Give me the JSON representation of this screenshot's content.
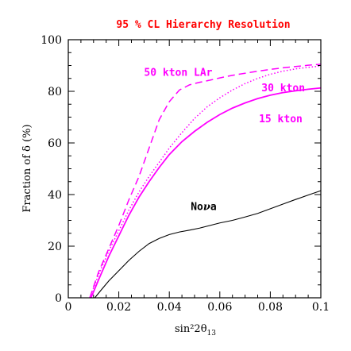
{
  "chart_data": {
    "type": "line",
    "title": "95 % CL Hierarchy Resolution",
    "xlabel": "sin²2θ",
    "xlabel_sub": "13",
    "ylabel": "Fraction of δ  (%)",
    "xlim": [
      0,
      0.1
    ],
    "ylim": [
      0,
      100
    ],
    "x_ticks": [
      0,
      0.02,
      0.04,
      0.06,
      0.08,
      0.1
    ],
    "x_tick_labels": [
      "0",
      "0.02",
      "0.04",
      "0.06",
      "0.08",
      "0.1"
    ],
    "y_ticks": [
      0,
      20,
      40,
      60,
      80,
      100
    ],
    "y_tick_labels": [
      "0",
      "20",
      "40",
      "60",
      "80",
      "100"
    ],
    "grid": false,
    "colors": {
      "accent": "#ff00ff",
      "nova": "#000000",
      "axis": "#000000"
    },
    "series": [
      {
        "name": "50 kton LAr",
        "color": "#ff00ff",
        "style": "dashed",
        "label_at": [
          0.03,
          86
        ],
        "x": [
          0.0085,
          0.012,
          0.016,
          0.02,
          0.024,
          0.028,
          0.032,
          0.036,
          0.04,
          0.044,
          0.048,
          0.052,
          0.056,
          0.06,
          0.065,
          0.07,
          0.075,
          0.08,
          0.085,
          0.09,
          0.095,
          0.1
        ],
        "values": [
          0,
          10,
          19,
          28,
          38,
          47,
          58,
          69,
          76,
          80.5,
          82.5,
          83.5,
          84.3,
          85.2,
          86.2,
          87,
          87.8,
          88.5,
          89.1,
          89.6,
          90.1,
          90.5
        ]
      },
      {
        "name": "30 kton",
        "color": "#ff00ff",
        "style": "dotted",
        "label_at": [
          0.0765,
          80
        ],
        "x": [
          0.0085,
          0.012,
          0.016,
          0.02,
          0.024,
          0.028,
          0.032,
          0.036,
          0.04,
          0.045,
          0.05,
          0.055,
          0.06,
          0.065,
          0.07,
          0.075,
          0.08,
          0.085,
          0.09,
          0.095,
          0.1
        ],
        "values": [
          0,
          9,
          18,
          26,
          34,
          41,
          47,
          52.5,
          58,
          64,
          69.5,
          74,
          77.5,
          80.5,
          83,
          85,
          86.6,
          87.8,
          88.7,
          89.3,
          89.8
        ]
      },
      {
        "name": "15 kton",
        "color": "#ff00ff",
        "style": "solid",
        "label_at": [
          0.0755,
          68
        ],
        "x": [
          0.009,
          0.012,
          0.016,
          0.02,
          0.024,
          0.028,
          0.032,
          0.036,
          0.04,
          0.045,
          0.05,
          0.055,
          0.06,
          0.065,
          0.07,
          0.075,
          0.08,
          0.085,
          0.09,
          0.095,
          0.1
        ],
        "values": [
          0,
          7,
          16,
          24,
          32,
          39,
          45,
          50.5,
          55.5,
          60.5,
          64.5,
          68,
          71,
          73.5,
          75.5,
          77.2,
          78.5,
          79.5,
          80.2,
          80.8,
          81.3
        ]
      },
      {
        "name": "Nova",
        "color": "#000000",
        "style": "solid",
        "label_at": [
          0.0485,
          34
        ],
        "x": [
          0.0105,
          0.013,
          0.016,
          0.02,
          0.024,
          0.028,
          0.032,
          0.036,
          0.04,
          0.044,
          0.048,
          0.052,
          0.056,
          0.06,
          0.065,
          0.07,
          0.075,
          0.08,
          0.085,
          0.09,
          0.095,
          0.1
        ],
        "values": [
          0,
          3,
          6.5,
          10.5,
          14.5,
          18,
          21,
          23,
          24.5,
          25.5,
          26.2,
          27,
          28,
          29,
          30,
          31.3,
          32.7,
          34.5,
          36.3,
          38.1,
          39.8,
          41.5
        ]
      }
    ],
    "annotations": [
      {
        "text": "50 kton LAr",
        "color": "#ff00ff"
      },
      {
        "text": "30 kton",
        "color": "#ff00ff"
      },
      {
        "text": "15 kton",
        "color": "#ff00ff"
      },
      {
        "text": "Nova",
        "color": "#000000",
        "greek_suffix": "ν",
        "prefix": "No",
        "suffix": "a"
      }
    ]
  }
}
